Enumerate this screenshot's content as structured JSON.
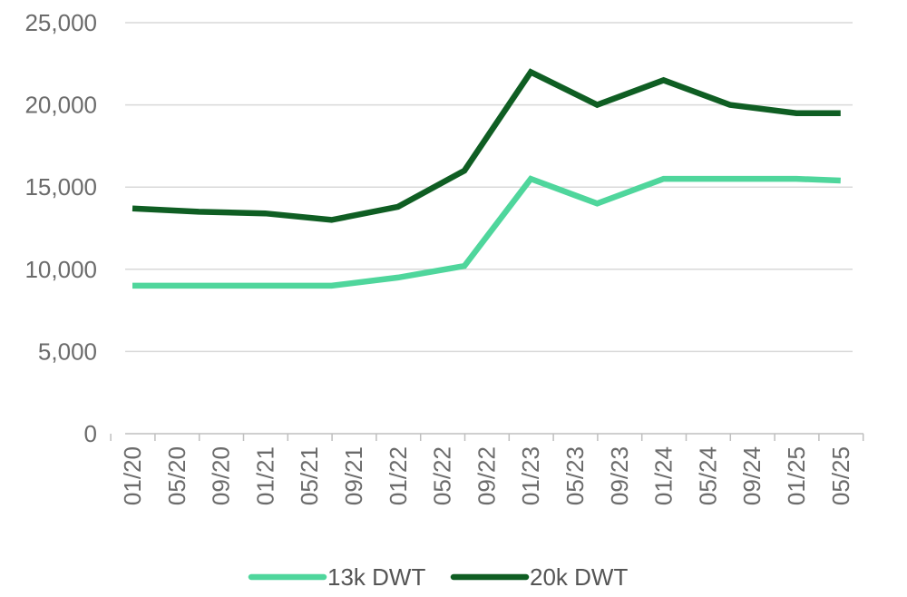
{
  "chart_data": {
    "type": "line",
    "title": "",
    "xlabel": "",
    "ylabel": "",
    "ylim": [
      0,
      25000
    ],
    "yticks": [
      0,
      5000,
      10000,
      15000,
      20000,
      25000
    ],
    "ytick_labels": [
      "0",
      "5,000",
      "10,000",
      "15,000",
      "20,000",
      "25,000"
    ],
    "grid": true,
    "legend_position": "bottom",
    "categories": [
      "01/20",
      "05/20",
      "09/20",
      "01/21",
      "05/21",
      "09/21",
      "01/22",
      "05/22",
      "09/22",
      "01/23",
      "05/23",
      "09/23",
      "01/24",
      "05/24",
      "09/24",
      "01/25",
      "05/25"
    ],
    "series": [
      {
        "name": "13k DWT",
        "color": "#4fd69c",
        "points": [
          {
            "x": 0,
            "y": 9000
          },
          {
            "x": 4.5,
            "y": 9000
          },
          {
            "x": 6,
            "y": 9500
          },
          {
            "x": 7.5,
            "y": 10200
          },
          {
            "x": 9,
            "y": 15500
          },
          {
            "x": 10.5,
            "y": 14000
          },
          {
            "x": 12,
            "y": 15500
          },
          {
            "x": 13.5,
            "y": 15500
          },
          {
            "x": 15,
            "y": 15500
          },
          {
            "x": 16,
            "y": 15400
          }
        ]
      },
      {
        "name": "20k DWT",
        "color": "#0f5e23",
        "points": [
          {
            "x": 0,
            "y": 13700
          },
          {
            "x": 1.5,
            "y": 13500
          },
          {
            "x": 3,
            "y": 13400
          },
          {
            "x": 4.5,
            "y": 13000
          },
          {
            "x": 6,
            "y": 13800
          },
          {
            "x": 7.5,
            "y": 16000
          },
          {
            "x": 9,
            "y": 22000
          },
          {
            "x": 10.5,
            "y": 20000
          },
          {
            "x": 12,
            "y": 21500
          },
          {
            "x": 13.5,
            "y": 20000
          },
          {
            "x": 15,
            "y": 19500
          },
          {
            "x": 16,
            "y": 19500
          }
        ]
      }
    ]
  }
}
